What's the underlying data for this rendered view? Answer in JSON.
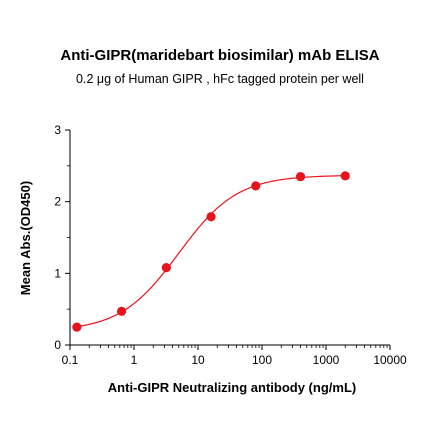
{
  "chart_data": {
    "type": "scatter",
    "title": "Anti-GIPR(maridebart biosimilar) mAb ELISA",
    "subtitle": "0.2 μg of Human GIPR , hFc tagged protein per well",
    "xlabel": "Anti-GIPR Neutralizing antibody (ng/mL)",
    "ylabel": "Mean Abs.(OD450)",
    "x_scale": "log",
    "xlim": [
      0.1,
      10000
    ],
    "ylim": [
      0,
      3
    ],
    "x_ticks": [
      "0.1",
      "1",
      "10",
      "100",
      "1000",
      "10000"
    ],
    "y_ticks": [
      "0",
      "1",
      "2",
      "3"
    ],
    "grid": false,
    "series": [
      {
        "points": [
          {
            "x": 0.128,
            "y": 0.25
          },
          {
            "x": 0.64,
            "y": 0.47
          },
          {
            "x": 3.2,
            "y": 1.08
          },
          {
            "x": 16,
            "y": 1.79
          },
          {
            "x": 80,
            "y": 2.22
          },
          {
            "x": 400,
            "y": 2.35
          },
          {
            "x": 2000,
            "y": 2.36
          }
        ],
        "fit_curve": {
          "bottom": 0.19,
          "top": 2.37,
          "ec50": 5.0,
          "hill": 0.95
        }
      }
    ],
    "colors": {
      "points": "#e8141c",
      "curve": "#e8141c",
      "axis": "#000000"
    }
  }
}
